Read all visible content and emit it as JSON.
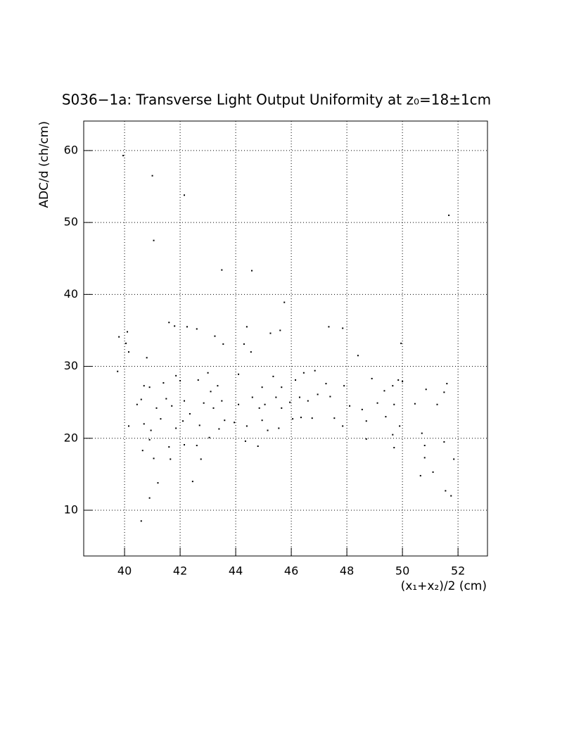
{
  "chart_data": {
    "type": "scatter",
    "title": "S036−1a: Transverse Light Output Uniformity at z₀=18±1cm",
    "x_label": "(x₁+x₂)/2 (cm)",
    "y_label": "ADC/d (ch/cm)",
    "color": "#000000",
    "grid": true,
    "xlim": [
      38.53,
      53.06
    ],
    "xticks": [
      40,
      42,
      44,
      46,
      48,
      50,
      52
    ],
    "ylim": [
      3.64,
      64.1
    ],
    "yticks": [
      10,
      20,
      30,
      40,
      50,
      60
    ],
    "x": [
      39.95,
      41.0,
      42.15,
      41.05,
      51.67,
      43.5,
      44.58,
      45.75,
      39.8,
      40.1,
      40.05,
      40.15,
      40.8,
      41.6,
      41.8,
      42.25,
      42.6,
      43.25,
      43.55,
      44.3,
      44.4,
      44.55,
      45.25,
      45.6,
      47.35,
      47.85,
      48.4,
      39.75,
      40.7,
      40.9,
      41.4,
      41.85,
      42.0,
      42.65,
      43.0,
      43.1,
      43.35,
      44.1,
      44.95,
      45.35,
      45.65,
      46.15,
      46.45,
      46.85,
      47.25,
      47.9,
      48.9,
      49.35,
      49.65,
      49.85,
      50.0,
      49.95,
      50.85,
      51.6,
      40.45,
      40.6,
      41.15,
      41.5,
      41.7,
      42.15,
      42.35,
      42.85,
      43.2,
      43.5,
      44.1,
      44.6,
      44.85,
      45.05,
      45.45,
      45.65,
      45.95,
      46.3,
      46.6,
      46.95,
      47.4,
      48.1,
      48.55,
      49.1,
      49.7,
      50.45,
      51.25,
      51.5,
      40.15,
      40.7,
      40.95,
      41.3,
      41.85,
      42.1,
      42.7,
      43.05,
      43.4,
      43.6,
      43.95,
      44.4,
      44.95,
      45.15,
      45.55,
      46.05,
      46.35,
      46.75,
      47.55,
      47.85,
      48.7,
      49.4,
      49.9,
      48.7,
      49.65,
      50.7,
      44.35,
      44.8,
      40.9,
      40.65,
      41.6,
      42.6,
      42.15,
      41.05,
      41.65,
      42.75,
      49.7,
      50.8,
      50.8,
      51.1,
      50.65,
      51.5,
      51.85,
      41.2,
      42.45,
      40.9,
      51.55,
      51.75,
      40.6
    ],
    "values": [
      59.3,
      56.5,
      53.8,
      47.5,
      51.0,
      43.4,
      43.3,
      38.9,
      34.1,
      34.8,
      33.2,
      32.0,
      31.2,
      36.1,
      35.6,
      35.5,
      35.2,
      34.2,
      33.1,
      33.1,
      35.5,
      32.0,
      34.6,
      35.0,
      35.5,
      35.3,
      31.5,
      29.3,
      27.3,
      27.1,
      27.7,
      28.7,
      28.0,
      28.1,
      29.1,
      26.5,
      27.3,
      28.9,
      27.1,
      28.6,
      27.1,
      28.1,
      29.1,
      29.4,
      27.6,
      27.3,
      28.3,
      26.6,
      27.3,
      28.1,
      27.9,
      33.2,
      26.8,
      27.6,
      24.7,
      25.4,
      24.2,
      25.5,
      24.5,
      25.2,
      23.4,
      24.9,
      24.2,
      25.2,
      24.7,
      25.7,
      24.2,
      24.7,
      25.7,
      24.2,
      25.0,
      25.7,
      25.2,
      26.1,
      25.8,
      24.5,
      24.0,
      24.9,
      24.7,
      24.8,
      24.7,
      26.4,
      21.7,
      22.0,
      21.1,
      22.7,
      21.4,
      22.4,
      21.8,
      20.1,
      21.3,
      22.5,
      22.2,
      21.7,
      22.5,
      21.1,
      21.4,
      22.7,
      22.9,
      22.8,
      22.8,
      21.7,
      22.4,
      23.0,
      21.7,
      19.9,
      20.5,
      20.7,
      19.6,
      18.9,
      19.8,
      18.3,
      18.8,
      19.0,
      19.1,
      17.2,
      17.1,
      17.1,
      18.7,
      19.0,
      17.3,
      15.3,
      14.8,
      19.5,
      17.1,
      13.8,
      14.0,
      11.7,
      12.7,
      12.0,
      8.5
    ]
  }
}
